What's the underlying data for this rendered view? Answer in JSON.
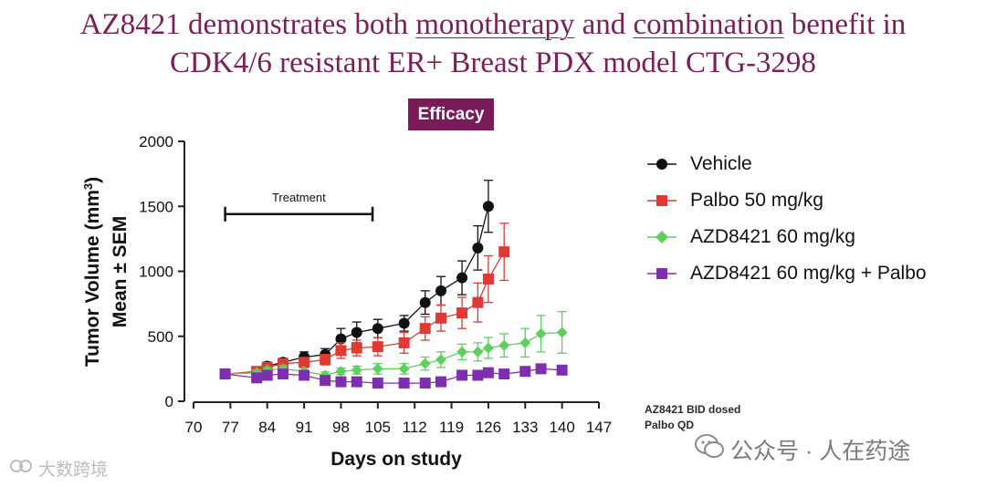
{
  "title": {
    "line1_pre": "AZ8421 demonstrates both ",
    "line1_u1": "monotherapy",
    "line1_mid": " and ",
    "line1_u2": "combination",
    "line1_post": " benefit in",
    "line2": "CDK4/6 resistant ER+ Breast PDX model CTG-3298"
  },
  "badge": "Efficacy",
  "footnote": {
    "line1": "AZ8421 BID dosed",
    "line2": "Palbo QD"
  },
  "watermarks": {
    "left": "大数跨境",
    "right": "公众号 · 人在药途"
  },
  "colors": {
    "vehicle": "#111111",
    "palbo": "#e03a33",
    "azd": "#5fcf5f",
    "combo": "#7e2fb0",
    "title": "#7b1f57",
    "badge": "#7a1b59"
  },
  "chart_data": {
    "type": "line",
    "xlabel": "Days on study",
    "ylabel_line1": "Tumor Volume (mm",
    "ylabel_sup": "3",
    "ylabel_close": ")",
    "ylabel_line2": "Mean ± SEM",
    "xlim": [
      70,
      147
    ],
    "ylim": [
      0,
      2000
    ],
    "xticks": [
      70,
      77,
      84,
      91,
      98,
      105,
      112,
      119,
      126,
      133,
      140,
      147
    ],
    "yticks": [
      0,
      500,
      1000,
      1500,
      2000
    ],
    "annotation": {
      "text": "Treatment",
      "x_start": 76,
      "x_end": 104,
      "y": 1440
    },
    "series": [
      {
        "name": "Vehicle",
        "color": "#111111",
        "marker": "circle",
        "x": [
          76,
          82,
          84,
          87,
          91,
          95,
          98,
          101,
          105,
          110,
          114,
          117,
          121,
          124,
          126
        ],
        "y": [
          210,
          220,
          270,
          300,
          340,
          360,
          480,
          530,
          560,
          600,
          760,
          850,
          950,
          1180,
          1500
        ],
        "err": [
          20,
          25,
          30,
          30,
          40,
          45,
          80,
          80,
          70,
          60,
          90,
          110,
          130,
          170,
          200
        ]
      },
      {
        "name": "Palbo 50 mg/kg",
        "color": "#e03a33",
        "marker": "square",
        "x": [
          76,
          82,
          84,
          87,
          91,
          95,
          98,
          101,
          105,
          110,
          114,
          117,
          121,
          124,
          126,
          129
        ],
        "y": [
          210,
          230,
          260,
          290,
          300,
          320,
          390,
          410,
          420,
          450,
          560,
          640,
          680,
          760,
          940,
          1150
        ],
        "err": [
          20,
          25,
          30,
          30,
          35,
          40,
          60,
          60,
          70,
          80,
          90,
          100,
          120,
          150,
          180,
          220
        ]
      },
      {
        "name": "AZD8421 60 mg/kg",
        "color": "#5fcf5f",
        "marker": "diamond",
        "x": [
          76,
          82,
          84,
          87,
          91,
          95,
          98,
          101,
          105,
          110,
          114,
          117,
          121,
          124,
          126,
          129,
          133,
          136,
          140
        ],
        "y": [
          210,
          220,
          240,
          250,
          230,
          200,
          230,
          240,
          250,
          250,
          290,
          320,
          380,
          380,
          410,
          430,
          450,
          520,
          530
        ],
        "err": [
          20,
          20,
          20,
          25,
          25,
          25,
          25,
          30,
          40,
          40,
          50,
          60,
          60,
          70,
          80,
          90,
          110,
          140,
          160
        ]
      },
      {
        "name": "AZD8421 60 mg/kg + Palbo",
        "color": "#7e2fb0",
        "marker": "square",
        "x": [
          76,
          82,
          84,
          87,
          91,
          95,
          98,
          101,
          105,
          110,
          114,
          117,
          121,
          124,
          126,
          129,
          133,
          136,
          140
        ],
        "y": [
          210,
          180,
          200,
          210,
          200,
          160,
          150,
          150,
          140,
          140,
          140,
          150,
          200,
          200,
          220,
          210,
          230,
          250,
          240
        ],
        "err": [
          15,
          15,
          15,
          15,
          15,
          15,
          15,
          15,
          15,
          15,
          15,
          15,
          15,
          15,
          15,
          15,
          15,
          15,
          15
        ]
      }
    ]
  }
}
